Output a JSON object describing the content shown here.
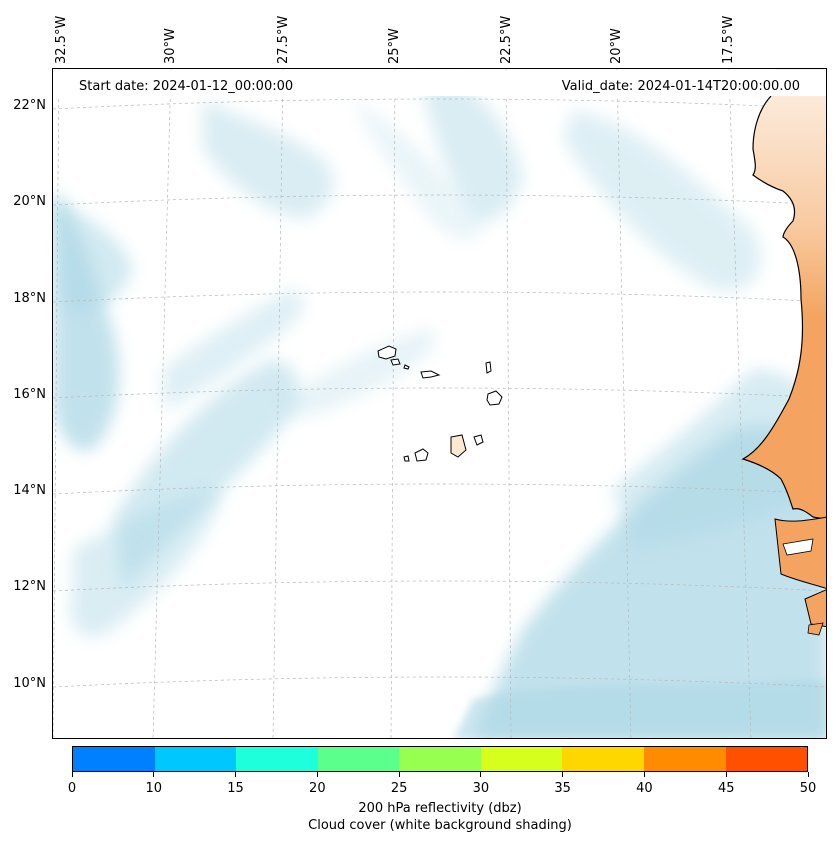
{
  "map": {
    "start_date": "Start date: 2024-01-12_00:00:00",
    "valid_date": "Valid_date: 2024-01-14T20:00:00.00",
    "lon_labels": [
      "32.5°W",
      "30°W",
      "27.5°W",
      "25°W",
      "22.5°W",
      "20°W",
      "17.5°W"
    ],
    "lat_labels": [
      "22°N",
      "20°N",
      "18°N",
      "16°N",
      "14°N",
      "12°N",
      "10°N"
    ],
    "land_fill_color": "#f4a460",
    "cloud_color": "#add8e6",
    "coastline_color": "#000000"
  },
  "colorbar": {
    "ticks": [
      "0",
      "10",
      "15",
      "20",
      "25",
      "30",
      "35",
      "40",
      "45",
      "50"
    ],
    "colors": [
      "#0080ff",
      "#00c8ff",
      "#1effdc",
      "#5aff8c",
      "#96ff50",
      "#d7ff1e",
      "#ffd700",
      "#ff8c00",
      "#ff5000"
    ],
    "label_line1": "200 hPa reflectivity (dbz)",
    "label_line2": "Cloud cover (white background shading)"
  }
}
